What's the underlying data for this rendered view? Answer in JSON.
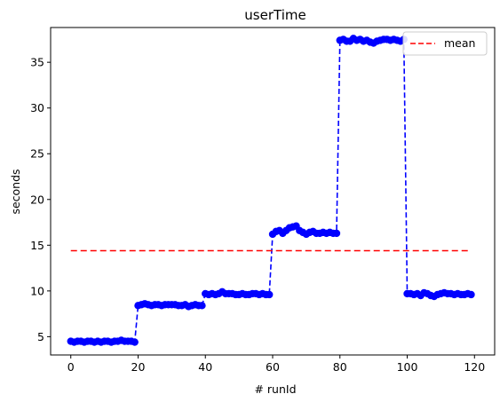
{
  "chart_data": {
    "type": "line",
    "title": "userTime",
    "xlabel": "# runId",
    "ylabel": "seconds",
    "xlim": [
      -6,
      126
    ],
    "ylim": [
      3,
      38.8
    ],
    "xticks": [
      0,
      20,
      40,
      60,
      80,
      100,
      120
    ],
    "yticks": [
      5,
      10,
      15,
      20,
      25,
      30,
      35
    ],
    "grid": false,
    "legend": {
      "placement": "top-right",
      "entries": [
        "mean"
      ]
    },
    "colors": {
      "series": "#0000ff",
      "mean": "#ff0000"
    },
    "series": [
      {
        "style": "dashed-line-with-circle-markers",
        "x": [
          0,
          1,
          2,
          3,
          4,
          5,
          6,
          7,
          8,
          9,
          10,
          11,
          12,
          13,
          14,
          15,
          16,
          17,
          18,
          19,
          20,
          21,
          22,
          23,
          24,
          25,
          26,
          27,
          28,
          29,
          30,
          31,
          32,
          33,
          34,
          35,
          36,
          37,
          38,
          39,
          40,
          41,
          42,
          43,
          44,
          45,
          46,
          47,
          48,
          49,
          50,
          51,
          52,
          53,
          54,
          55,
          56,
          57,
          58,
          59,
          60,
          61,
          62,
          63,
          64,
          65,
          66,
          67,
          68,
          69,
          70,
          71,
          72,
          73,
          74,
          75,
          76,
          77,
          78,
          79,
          80,
          81,
          82,
          83,
          84,
          85,
          86,
          87,
          88,
          89,
          90,
          91,
          92,
          93,
          94,
          95,
          96,
          97,
          98,
          99,
          100,
          101,
          102,
          103,
          104,
          105,
          106,
          107,
          108,
          109,
          110,
          111,
          112,
          113,
          114,
          115,
          116,
          117,
          118,
          119
        ],
        "y": [
          4.5,
          4.4,
          4.5,
          4.5,
          4.4,
          4.5,
          4.5,
          4.4,
          4.5,
          4.4,
          4.5,
          4.5,
          4.4,
          4.5,
          4.5,
          4.6,
          4.5,
          4.5,
          4.5,
          4.4,
          8.4,
          8.5,
          8.6,
          8.5,
          8.4,
          8.5,
          8.5,
          8.4,
          8.5,
          8.5,
          8.5,
          8.5,
          8.4,
          8.4,
          8.5,
          8.3,
          8.4,
          8.5,
          8.4,
          8.4,
          9.7,
          9.6,
          9.7,
          9.6,
          9.7,
          9.9,
          9.7,
          9.7,
          9.7,
          9.6,
          9.6,
          9.7,
          9.6,
          9.6,
          9.7,
          9.7,
          9.6,
          9.7,
          9.6,
          9.6,
          16.2,
          16.5,
          16.6,
          16.3,
          16.6,
          16.9,
          17.0,
          17.1,
          16.6,
          16.4,
          16.2,
          16.4,
          16.5,
          16.3,
          16.3,
          16.4,
          16.3,
          16.4,
          16.3,
          16.3,
          37.4,
          37.5,
          37.3,
          37.3,
          37.6,
          37.4,
          37.5,
          37.3,
          37.4,
          37.2,
          37.1,
          37.3,
          37.4,
          37.5,
          37.5,
          37.4,
          37.5,
          37.4,
          37.3,
          37.5,
          9.7,
          9.7,
          9.6,
          9.7,
          9.5,
          9.8,
          9.7,
          9.5,
          9.4,
          9.6,
          9.7,
          9.8,
          9.7,
          9.7,
          9.6,
          9.7,
          9.6,
          9.6,
          9.7,
          9.6
        ]
      },
      {
        "name": "mean",
        "style": "dashed-line",
        "x": [
          0,
          119
        ],
        "y": [
          14.4,
          14.4
        ]
      }
    ]
  }
}
